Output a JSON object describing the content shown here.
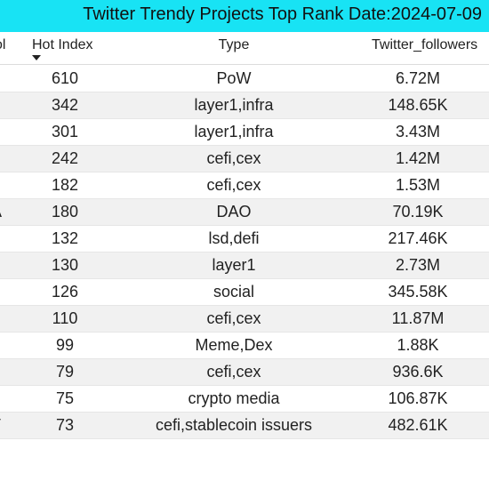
{
  "title": "Twitter Trendy Projects Top Rank Date:2024-07-09",
  "columns": {
    "symbol": "ol",
    "hot_index": "Hot Index",
    "type": "Type",
    "followers": "Twitter_followers"
  },
  "sort_icon": "sort-descending-icon",
  "colors": {
    "title_bg": "#18e3f4",
    "alt_row": "#f1f1f1"
  },
  "rows": [
    {
      "sym": "",
      "hot": "610",
      "type": "PoW",
      "followers": "6.72M"
    },
    {
      "sym": "",
      "hot": "342",
      "type": "layer1,infra",
      "followers": "148.65K"
    },
    {
      "sym": "",
      "hot": "301",
      "type": "layer1,infra",
      "followers": "3.43M"
    },
    {
      "sym": "",
      "hot": "242",
      "type": "cefi,cex",
      "followers": "1.42M"
    },
    {
      "sym": "",
      "hot": "182",
      "type": "cefi,cex",
      "followers": "1.53M"
    },
    {
      "sym": "A",
      "hot": "180",
      "type": "DAO",
      "followers": "70.19K"
    },
    {
      "sym": "",
      "hot": "132",
      "type": "lsd,defi",
      "followers": "217.46K"
    },
    {
      "sym": "",
      "hot": "130",
      "type": "layer1",
      "followers": "2.73M"
    },
    {
      "sym": "",
      "hot": "126",
      "type": "social",
      "followers": "345.58K"
    },
    {
      "sym": "",
      "hot": "110",
      "type": "cefi,cex",
      "followers": "11.87M"
    },
    {
      "sym": "",
      "hot": "99",
      "type": "Meme,Dex",
      "followers": "1.88K"
    },
    {
      "sym": "",
      "hot": "79",
      "type": "cefi,cex",
      "followers": "936.6K"
    },
    {
      "sym": "",
      "hot": "75",
      "type": "crypto media",
      "followers": "106.87K"
    },
    {
      "sym": "T",
      "hot": "73",
      "type": "cefi,stablecoin issuers",
      "followers": "482.61K"
    }
  ]
}
